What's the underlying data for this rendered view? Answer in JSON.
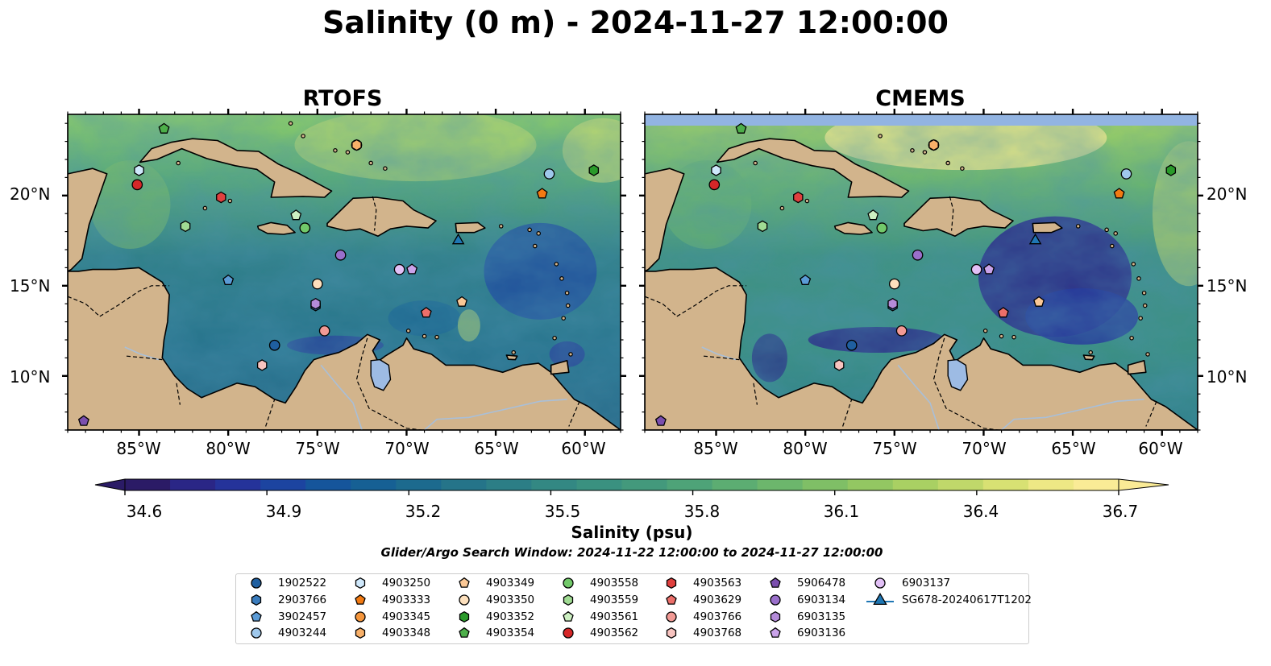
{
  "title": "Salinity (0 m) - 2024-11-27 12:00:00",
  "panels": [
    {
      "name": "rtofs",
      "title": "RTOFS"
    },
    {
      "name": "cmems",
      "title": "CMEMS"
    }
  ],
  "axes": {
    "lon_ticks": [
      "85°W",
      "80°W",
      "75°W",
      "70°W",
      "65°W",
      "60°W"
    ],
    "lat_ticks": [
      "20°N",
      "15°N",
      "10°N"
    ]
  },
  "colorbar": {
    "label": "Salinity (psu)",
    "ticks": [
      "34.6",
      "34.9",
      "35.2",
      "35.5",
      "35.8",
      "36.1",
      "36.4",
      "36.7"
    ],
    "colors": [
      "#2b1b66",
      "#2a2686",
      "#25339a",
      "#1c44a0",
      "#15559b",
      "#166094",
      "#1c6a8e",
      "#257489",
      "#2c7e86",
      "#338883",
      "#3a9180",
      "#43997c",
      "#4ea378",
      "#5cad72",
      "#6cb66c",
      "#7fbf66",
      "#93c762",
      "#a9d063",
      "#c0d86a",
      "#d8e173",
      "#eee885",
      "#faeb96"
    ],
    "extend": "both"
  },
  "search_window": "Glider/Argo Search Window: 2024-11-22 12:00:00 to 2024-11-27 12:00:00",
  "chart_data": {
    "type": "map",
    "variable": "Salinity (0 m)",
    "datetime": "2024-11-27 12:00:00",
    "lon_range": [
      -89,
      -58
    ],
    "lat_range": [
      7,
      24.5
    ],
    "color_range": [
      34.6,
      36.7
    ],
    "units": "psu",
    "platforms": [
      {
        "id": "1902522",
        "shape": "circle",
        "color": "#1f5fa0",
        "lon": -77.4,
        "lat": 11.7
      },
      {
        "id": "2903766",
        "shape": "hexagon",
        "color": "#3a7cbd",
        "lon": -75.1,
        "lat": 13.9
      },
      {
        "id": "3902457",
        "shape": "pentagon",
        "color": "#5b9bd6",
        "lon": -80.0,
        "lat": 15.3
      },
      {
        "id": "4903244",
        "shape": "circle",
        "color": "#9fc8ec",
        "lon": -62.0,
        "lat": 21.2
      },
      {
        "id": "4903250",
        "shape": "hexagon",
        "color": "#cfe8fb",
        "lon": -85.0,
        "lat": 21.4
      },
      {
        "id": "4903333",
        "shape": "pentagon",
        "color": "#f27a12",
        "lon": -62.4,
        "lat": 20.1
      },
      {
        "id": "4903345",
        "shape": "circle",
        "color": "#f5963c",
        "lon": -72.8,
        "lat": 22.8
      },
      {
        "id": "4903348",
        "shape": "hexagon",
        "color": "#f8b069",
        "lon": -72.8,
        "lat": 22.8
      },
      {
        "id": "4903349",
        "shape": "pentagon",
        "color": "#fbc896",
        "lon": -66.9,
        "lat": 14.1
      },
      {
        "id": "4903350",
        "shape": "circle",
        "color": "#fde0bd",
        "lon": -75.0,
        "lat": 15.1
      },
      {
        "id": "4903352",
        "shape": "hexagon",
        "color": "#2a9a2a",
        "lon": -59.5,
        "lat": 21.4
      },
      {
        "id": "4903354",
        "shape": "pentagon",
        "color": "#4daf4a",
        "lon": -83.6,
        "lat": 23.7
      },
      {
        "id": "4903558",
        "shape": "circle",
        "color": "#72c96a",
        "lon": -75.7,
        "lat": 18.2
      },
      {
        "id": "4903559",
        "shape": "hexagon",
        "color": "#a0db93",
        "lon": -82.4,
        "lat": 18.3
      },
      {
        "id": "4903561",
        "shape": "pentagon",
        "color": "#cdf0c2",
        "lon": -76.2,
        "lat": 18.9
      },
      {
        "id": "4903562",
        "shape": "circle",
        "color": "#d62728",
        "lon": -85.1,
        "lat": 20.6
      },
      {
        "id": "4903563",
        "shape": "hexagon",
        "color": "#e0403e",
        "lon": -80.4,
        "lat": 19.9
      },
      {
        "id": "4903629",
        "shape": "pentagon",
        "color": "#ec6f6a",
        "lon": -68.9,
        "lat": 13.5
      },
      {
        "id": "4903766",
        "shape": "circle",
        "color": "#f29a95",
        "lon": -74.6,
        "lat": 12.5
      },
      {
        "id": "4903768",
        "shape": "hexagon",
        "color": "#f8c4c0",
        "lon": -78.1,
        "lat": 10.6
      },
      {
        "id": "5906478",
        "shape": "pentagon",
        "color": "#7b4fae",
        "lon": -88.1,
        "lat": 7.5
      },
      {
        "id": "6903134",
        "shape": "circle",
        "color": "#9a6fcb",
        "lon": -73.7,
        "lat": 16.7
      },
      {
        "id": "6903135",
        "shape": "hexagon",
        "color": "#b48bd9",
        "lon": -75.1,
        "lat": 14.0
      },
      {
        "id": "6903136",
        "shape": "pentagon",
        "color": "#caa3ea",
        "lon": -69.7,
        "lat": 15.9
      },
      {
        "id": "6903137",
        "shape": "circle",
        "color": "#e2c0f6",
        "lon": -70.4,
        "lat": 15.9
      },
      {
        "id": "SG678-20240617T1202",
        "shape": "triangle",
        "color": "#1f77b4",
        "lon": -67.1,
        "lat": 17.5
      }
    ]
  }
}
